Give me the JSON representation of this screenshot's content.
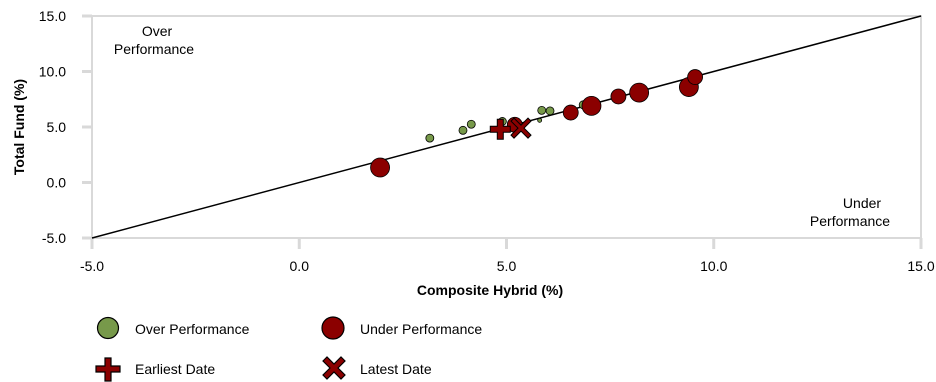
{
  "chart_data": {
    "type": "scatter",
    "xlabel": "Composite Hybrid  (%)",
    "ylabel": "Total Fund  (%)",
    "xlim": [
      -5.0,
      15.0
    ],
    "ylim": [
      -5.0,
      15.0
    ],
    "xticks": [
      "-5.0",
      "0.0",
      "5.0",
      "10.0",
      "15.0"
    ],
    "yticks": [
      "-5.0",
      "0.0",
      "5.0",
      "10.0",
      "15.0"
    ],
    "reference_line": {
      "from": [
        -5.0,
        -5.0
      ],
      "to": [
        15.0,
        15.0
      ]
    },
    "annotations": {
      "over": [
        "Over",
        "Performance"
      ],
      "under": [
        "Under",
        "Performance"
      ]
    },
    "series": [
      {
        "name": "Over Performance",
        "color": "#77994a",
        "points": [
          {
            "x": 3.15,
            "y": 4.0,
            "size": "small"
          },
          {
            "x": 3.95,
            "y": 4.7,
            "size": "small"
          },
          {
            "x": 4.15,
            "y": 5.25,
            "size": "small"
          },
          {
            "x": 4.9,
            "y": 5.5,
            "size": "small"
          },
          {
            "x": 5.85,
            "y": 6.5,
            "size": "small"
          },
          {
            "x": 6.05,
            "y": 6.45,
            "size": "small"
          },
          {
            "x": 6.85,
            "y": 7.0,
            "size": "small"
          },
          {
            "x": 5.8,
            "y": 5.6,
            "size": "tiny"
          }
        ]
      },
      {
        "name": "Under Performance",
        "color": "#8b0000",
        "points": [
          {
            "x": 1.95,
            "y": 1.35,
            "size": "large"
          },
          {
            "x": 5.2,
            "y": 5.2,
            "size": "medium"
          },
          {
            "x": 6.55,
            "y": 6.3,
            "size": "medium"
          },
          {
            "x": 7.05,
            "y": 6.9,
            "size": "large"
          },
          {
            "x": 7.7,
            "y": 7.75,
            "size": "medium"
          },
          {
            "x": 8.2,
            "y": 8.1,
            "size": "large"
          },
          {
            "x": 9.4,
            "y": 8.6,
            "size": "large"
          },
          {
            "x": 9.55,
            "y": 9.5,
            "size": "medium"
          }
        ]
      }
    ],
    "earliest": {
      "name": "Earliest Date",
      "x": 4.85,
      "y": 4.8
    },
    "latest": {
      "name": "Latest Date",
      "x": 5.35,
      "y": 4.9
    }
  },
  "legend": {
    "over": "Over Performance",
    "under": "Under Performance",
    "earliest": "Earliest Date",
    "latest": "Latest Date"
  },
  "colors": {
    "over": "#77994a",
    "under": "#8b0000",
    "axis_frame": "#d9d9d9"
  }
}
